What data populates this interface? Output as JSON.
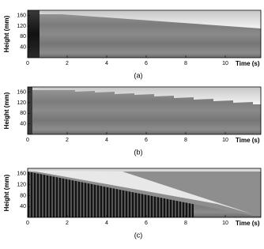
{
  "chart_data": [
    {
      "type": "image",
      "caption": "(a)",
      "xlabel": "Time (s)",
      "ylabel": "Height (mm)",
      "xlim": [
        0,
        11.8
      ],
      "ylim": [
        0,
        180
      ],
      "xticks": [
        0,
        2,
        4,
        6,
        8,
        10
      ],
      "yticks": [
        40,
        80,
        120,
        160
      ]
    },
    {
      "type": "image",
      "caption": "(b)",
      "xlabel": "Time (s)",
      "ylabel": "Height (mm)",
      "xlim": [
        0,
        11.8
      ],
      "ylim": [
        0,
        180
      ],
      "xticks": [
        0,
        2,
        4,
        6,
        8,
        10
      ],
      "yticks": [
        40,
        80,
        120,
        160
      ]
    },
    {
      "type": "image",
      "caption": "(c)",
      "xlabel": "Time (s)",
      "ylabel": "Height (mm)",
      "xlim": [
        0,
        11.8
      ],
      "ylim": [
        0,
        180
      ],
      "xticks": [
        0,
        2,
        4,
        6,
        8,
        10
      ],
      "yticks": [
        40,
        80,
        120,
        160
      ]
    }
  ]
}
